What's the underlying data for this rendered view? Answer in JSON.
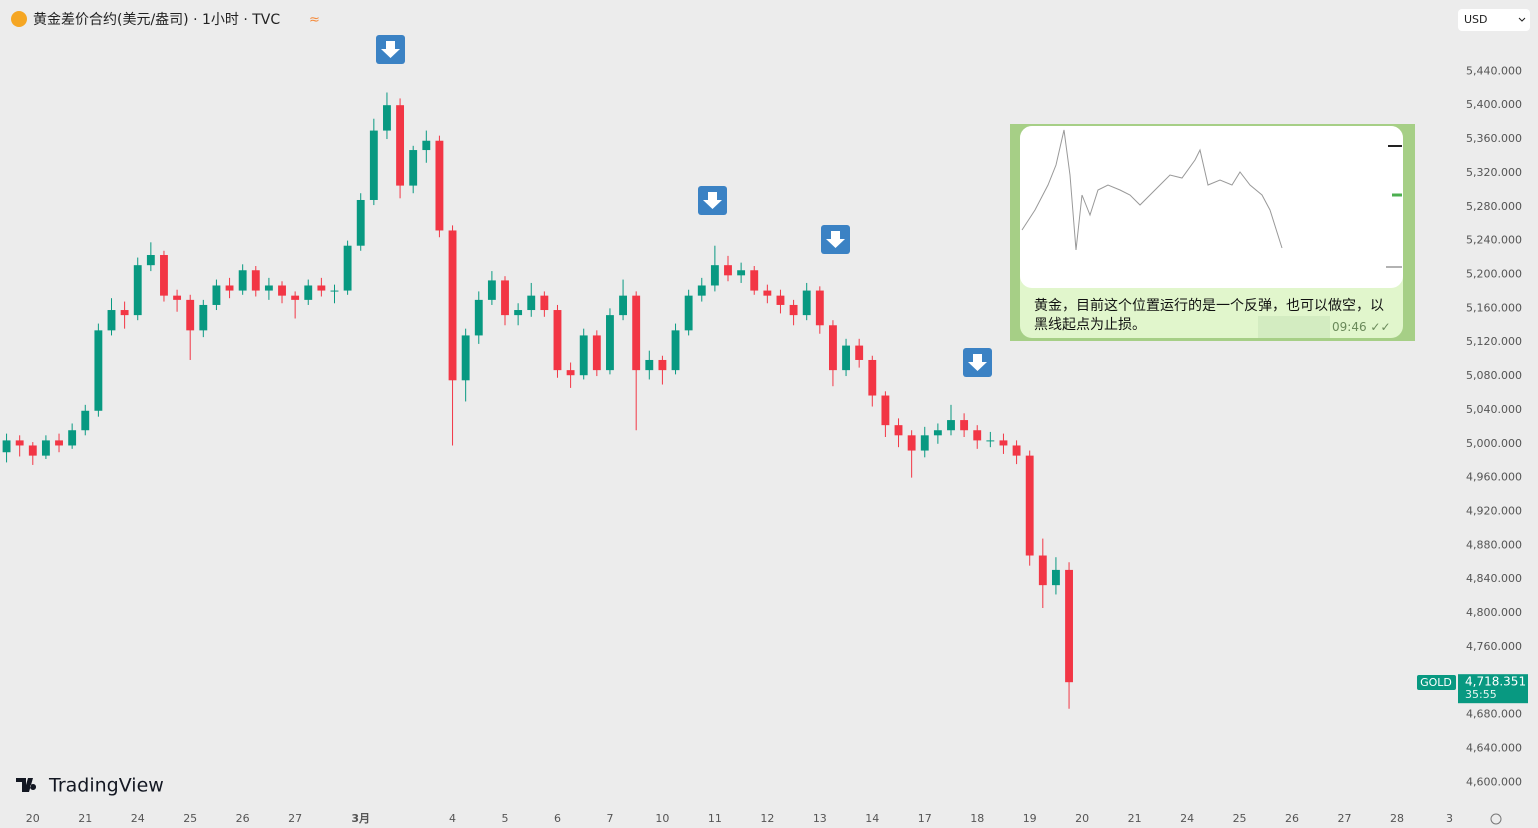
{
  "header": {
    "title": "黄金差价合约(美元/盎司) · 1小时 · TVC",
    "status": "≈",
    "currency": "USD"
  },
  "chart_data": {
    "type": "candlestick",
    "x": [
      0,
      1,
      2,
      3,
      4,
      5,
      6,
      7,
      8,
      9,
      10,
      11,
      12,
      13,
      14,
      15,
      16,
      17,
      18,
      19,
      20,
      21,
      22,
      23,
      24,
      25,
      26,
      27,
      28,
      29,
      30,
      31,
      32,
      33,
      34,
      35,
      36,
      37,
      38,
      39,
      40,
      41,
      42,
      43,
      44,
      45,
      46,
      47,
      48,
      49,
      50,
      51,
      52,
      53,
      54,
      55,
      56,
      57,
      58,
      59,
      60,
      61,
      62,
      63,
      64,
      65,
      66,
      67,
      68,
      69,
      70,
      71,
      72,
      73,
      74,
      75,
      76,
      77,
      78,
      79,
      80,
      81
    ],
    "open": [
      4990,
      5004,
      4998,
      4986,
      5004,
      4998,
      5016,
      5039,
      5134,
      5158,
      5152,
      5211,
      5223,
      5175,
      5170,
      5134,
      5164,
      5187,
      5181,
      5205,
      5181,
      5187,
      5175,
      5170,
      5187,
      5181,
      5181,
      5234,
      5288,
      5370,
      5400,
      5305,
      5347,
      5358,
      5252,
      5075,
      5128,
      5170,
      5193,
      5152,
      5158,
      5175,
      5158,
      5087,
      5081,
      5128,
      5087,
      5152,
      5175,
      5087,
      5099,
      5087,
      5134,
      5175,
      5187,
      5211,
      5199,
      5205,
      5181,
      5175,
      5164,
      5152,
      5181,
      5140,
      5087,
      5116,
      5099,
      5057,
      5022,
      5010,
      4992,
      5010,
      5016,
      5028,
      5016,
      5004,
      5004,
      4998,
      4986,
      4868,
      4833,
      4851
    ],
    "high": [
      5012,
      5010,
      5002,
      5010,
      5012,
      5024,
      5046,
      5142,
      5172,
      5168,
      5220,
      5238,
      5228,
      5182,
      5176,
      5170,
      5194,
      5196,
      5212,
      5210,
      5196,
      5192,
      5180,
      5194,
      5196,
      5188,
      5240,
      5296,
      5384,
      5415,
      5408,
      5352,
      5370,
      5364,
      5258,
      5136,
      5180,
      5204,
      5198,
      5166,
      5190,
      5180,
      5164,
      5096,
      5136,
      5134,
      5160,
      5194,
      5180,
      5110,
      5104,
      5142,
      5182,
      5196,
      5234,
      5222,
      5214,
      5210,
      5188,
      5182,
      5170,
      5190,
      5186,
      5146,
      5124,
      5124,
      5104,
      5062,
      5030,
      5016,
      5020,
      5024,
      5046,
      5036,
      5022,
      5014,
      5012,
      5004,
      4992,
      4888,
      4866,
      4860
    ],
    "low": [
      4978,
      4985,
      4975,
      4982,
      4990,
      4994,
      5010,
      5032,
      5128,
      5136,
      5146,
      5204,
      5168,
      5156,
      5099,
      5126,
      5158,
      5172,
      5176,
      5174,
      5170,
      5166,
      5148,
      5164,
      5174,
      5166,
      5176,
      5228,
      5282,
      5360,
      5290,
      5296,
      5332,
      5244,
      4998,
      5050,
      5118,
      5164,
      5140,
      5140,
      5150,
      5150,
      5078,
      5066,
      5076,
      5080,
      5082,
      5146,
      5016,
      5076,
      5070,
      5082,
      5128,
      5168,
      5180,
      5192,
      5190,
      5176,
      5166,
      5154,
      5140,
      5146,
      5130,
      5068,
      5080,
      5090,
      5044,
      5008,
      4996,
      4960,
      4984,
      5000,
      5010,
      5008,
      4994,
      4996,
      4988,
      4976,
      4856,
      4806,
      4822,
      4687
    ],
    "close": [
      5004,
      4998,
      4986,
      5004,
      4998,
      5016,
      5039,
      5134,
      5158,
      5152,
      5211,
      5223,
      5175,
      5170,
      5134,
      5164,
      5187,
      5181,
      5205,
      5181,
      5187,
      5175,
      5170,
      5187,
      5181,
      5181,
      5234,
      5288,
      5370,
      5400,
      5305,
      5347,
      5358,
      5252,
      5075,
      5128,
      5170,
      5193,
      5152,
      5158,
      5175,
      5158,
      5087,
      5081,
      5128,
      5087,
      5152,
      5175,
      5087,
      5099,
      5087,
      5134,
      5175,
      5187,
      5211,
      5199,
      5205,
      5181,
      5175,
      5164,
      5152,
      5181,
      5140,
      5087,
      5116,
      5099,
      5057,
      5022,
      5010,
      4992,
      5010,
      5016,
      5028,
      5016,
      5004,
      5004,
      4998,
      4986,
      4868,
      4833,
      4851,
      4718.351
    ],
    "up_color": "#089981",
    "down_color": "#f23645",
    "xlim": [
      -0.5,
      110.5
    ],
    "xticks": [
      {
        "value": 2,
        "label": "20"
      },
      {
        "value": 6,
        "label": "21"
      },
      {
        "value": 10,
        "label": "24"
      },
      {
        "value": 14,
        "label": "25"
      },
      {
        "value": 18,
        "label": "26"
      },
      {
        "value": 22,
        "label": "27"
      },
      {
        "value": 27,
        "label": "3月"
      },
      {
        "value": 34,
        "label": "4"
      },
      {
        "value": 38,
        "label": "5"
      },
      {
        "value": 42,
        "label": "6"
      },
      {
        "value": 46,
        "label": "7"
      },
      {
        "value": 50,
        "label": "10"
      },
      {
        "value": 54,
        "label": "11"
      },
      {
        "value": 58,
        "label": "12"
      },
      {
        "value": 62,
        "label": "13"
      },
      {
        "value": 66,
        "label": "14"
      },
      {
        "value": 70,
        "label": "17"
      },
      {
        "value": 74,
        "label": "18"
      },
      {
        "value": 78,
        "label": "19"
      },
      {
        "value": 82,
        "label": "20"
      },
      {
        "value": 86,
        "label": "21"
      },
      {
        "value": 90,
        "label": "24"
      },
      {
        "value": 94,
        "label": "25"
      },
      {
        "value": 98,
        "label": "26"
      },
      {
        "value": 102,
        "label": "27"
      },
      {
        "value": 106,
        "label": "28"
      },
      {
        "value": 110,
        "label": "3"
      }
    ],
    "ylim": [
      4565,
      5490
    ],
    "yticks": [
      {
        "value": 5440,
        "label": "5,440.000"
      },
      {
        "value": 5400,
        "label": "5,400.000"
      },
      {
        "value": 5360,
        "label": "5,360.000"
      },
      {
        "value": 5320,
        "label": "5,320.000"
      },
      {
        "value": 5280,
        "label": "5,280.000"
      },
      {
        "value": 5240,
        "label": "5,240.000"
      },
      {
        "value": 5200,
        "label": "5,200.000"
      },
      {
        "value": 5160,
        "label": "5,160.000"
      },
      {
        "value": 5120,
        "label": "5,120.000"
      },
      {
        "value": 5080,
        "label": "5,080.000"
      },
      {
        "value": 5040,
        "label": "5,040.000"
      },
      {
        "value": 5000,
        "label": "5,000.000"
      },
      {
        "value": 4960,
        "label": "4,960.000"
      },
      {
        "value": 4920,
        "label": "4,920.000"
      },
      {
        "value": 4880,
        "label": "4,880.000"
      },
      {
        "value": 4840,
        "label": "4,840.000"
      },
      {
        "value": 4800,
        "label": "4,800.000"
      },
      {
        "value": 4760,
        "label": "4,760.000"
      },
      {
        "value": 4680,
        "label": "4,680.000"
      },
      {
        "value": 4640,
        "label": "4,640.000"
      },
      {
        "value": 4600,
        "label": "4,600.000"
      }
    ],
    "last_price": {
      "symbol": "GOLD",
      "value": 4718.351,
      "label": "4,718.351",
      "countdown": "35:55"
    }
  },
  "inset": {
    "message": "黄金，目前这个位置运行的是一个反弹，也可以做空，以黑线起点为止损。",
    "time": "09:46"
  },
  "brand": "TradingView"
}
